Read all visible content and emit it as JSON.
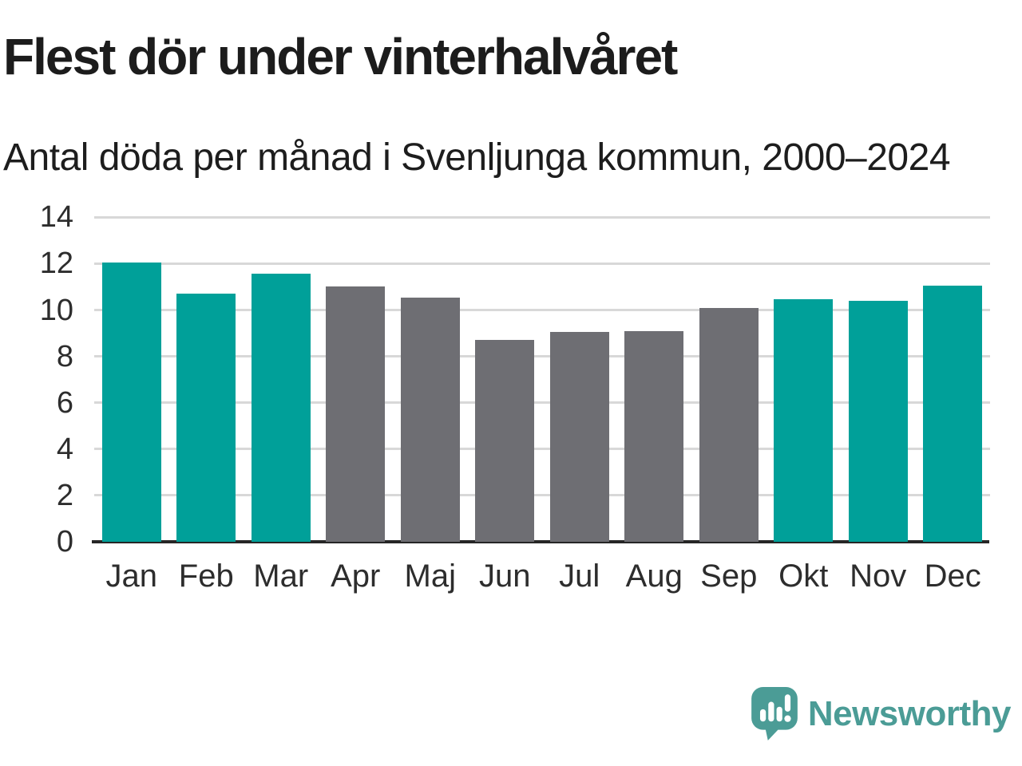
{
  "title": "Flest dör under vinterhalvåret",
  "subtitle": "Antal döda per månad i Svenljunga kommun, 2000–2024",
  "logo": {
    "text": "Newsworthy"
  },
  "colors": {
    "winter": "#00a099",
    "summer": "#6e6e73",
    "grid": "#d8d8d8",
    "axis": "#262626",
    "text": "#1d1d1d",
    "logo_teal": "#4b9c96"
  },
  "chart_data": {
    "type": "bar",
    "title": "Flest dör under vinterhalvåret",
    "subtitle": "Antal döda per månad i Svenljunga kommun, 2000–2024",
    "categories": [
      "Jan",
      "Feb",
      "Mar",
      "Apr",
      "Maj",
      "Jun",
      "Jul",
      "Aug",
      "Sep",
      "Okt",
      "Nov",
      "Dec"
    ],
    "values": [
      12.05,
      10.7,
      11.55,
      11.0,
      10.55,
      8.7,
      9.05,
      9.1,
      10.1,
      10.45,
      10.4,
      11.05
    ],
    "bar_colors_key": [
      "winter",
      "winter",
      "winter",
      "summer",
      "summer",
      "summer",
      "summer",
      "summer",
      "summer",
      "winter",
      "winter",
      "winter"
    ],
    "xlabel": "",
    "ylabel": "",
    "ylim": [
      0,
      14
    ],
    "yticks": [
      0,
      2,
      4,
      6,
      8,
      10,
      12,
      14
    ],
    "grid": "horizontal",
    "legend": "none"
  }
}
